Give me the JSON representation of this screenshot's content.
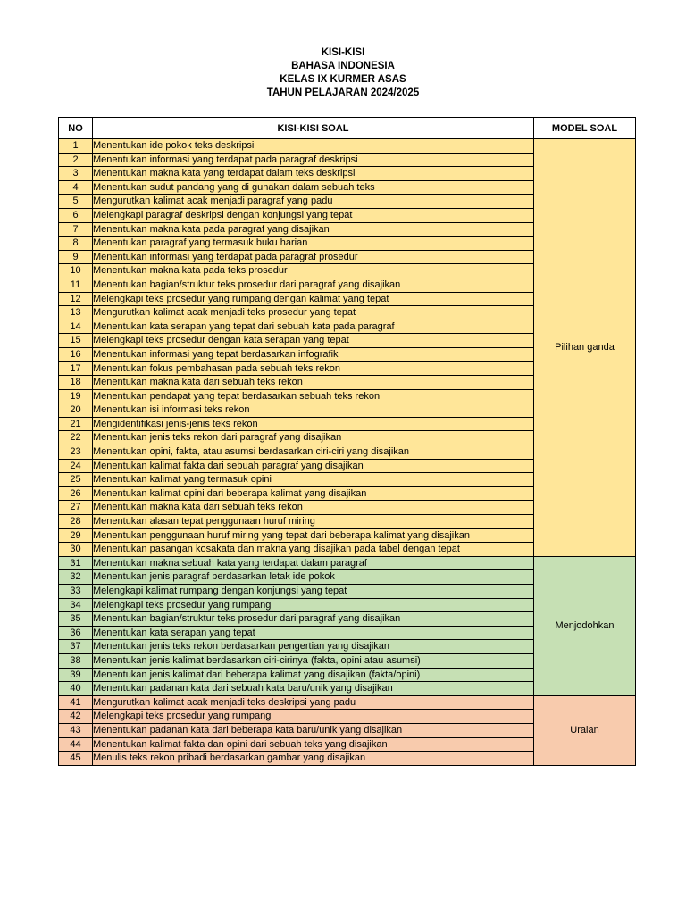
{
  "title": {
    "line1": "KISI-KISI",
    "line2": "BAHASA INDONESIA",
    "line3": "KELAS IX KURMER ASAS",
    "line4": "TAHUN PELAJARAN 2024/2025"
  },
  "table": {
    "headers": {
      "no": "NO",
      "kisi": "KISI-KISI SOAL",
      "model": "MODEL SOAL"
    },
    "groups": [
      {
        "model": "Pilihan ganda",
        "color": "#FFE699",
        "rows": [
          {
            "no": "1",
            "text": "Menentukan ide pokok teks deskripsi"
          },
          {
            "no": "2",
            "text": "Menentukan informasi yang terdapat pada paragraf deskripsi"
          },
          {
            "no": "3",
            "text": "Menentukan makna kata yang terdapat dalam teks deskripsi"
          },
          {
            "no": "4",
            "text": "Menentukan sudut pandang yang di gunakan dalam sebuah teks"
          },
          {
            "no": "5",
            "text": "Mengurutkan kalimat acak menjadi paragraf yang padu"
          },
          {
            "no": "6",
            "text": "Melengkapi paragraf deskripsi dengan konjungsi yang tepat"
          },
          {
            "no": "7",
            "text": "Menentukan makna kata pada paragraf yang disajikan"
          },
          {
            "no": "8",
            "text": "Menentukan paragraf yang termasuk buku harian"
          },
          {
            "no": "9",
            "text": "Menentukan informasi yang terdapat pada paragraf prosedur"
          },
          {
            "no": "10",
            "text": "Menentukan makna kata pada teks prosedur"
          },
          {
            "no": "11",
            "text": "Menentukan bagian/struktur teks prosedur dari paragraf yang disajikan"
          },
          {
            "no": "12",
            "text": "Melengkapi teks prosedur yang rumpang dengan kalimat yang tepat"
          },
          {
            "no": "13",
            "text": "Mengurutkan kalimat acak menjadi teks prosedur yang tepat"
          },
          {
            "no": "14",
            "text": "Menentukan kata serapan yang tepat dari sebuah kata pada paragraf"
          },
          {
            "no": "15",
            "text": "Melengkapi teks prosedur dengan kata serapan yang tepat"
          },
          {
            "no": "16",
            "text": "Menentukan informasi yang tepat berdasarkan infografik"
          },
          {
            "no": "17",
            "text": "Menentukan fokus pembahasan pada sebuah teks rekon"
          },
          {
            "no": "18",
            "text": "Menentukan makna kata dari sebuah teks rekon"
          },
          {
            "no": "19",
            "text": "Menentukan pendapat yang tepat berdasarkan sebuah teks rekon"
          },
          {
            "no": "20",
            "text": "Menentukan isi informasi teks rekon"
          },
          {
            "no": "21",
            "text": "Mengidentifikasi jenis-jenis teks rekon"
          },
          {
            "no": "22",
            "text": "Menentukan jenis teks rekon dari paragraf yang disajikan"
          },
          {
            "no": "23",
            "text": "Menentukan opini, fakta, atau asumsi berdasarkan ciri-ciri yang disajikan"
          },
          {
            "no": "24",
            "text": "Menentukan kalimat fakta dari sebuah paragraf yang disajikan"
          },
          {
            "no": "25",
            "text": "Menentukan kalimat yang termasuk opini"
          },
          {
            "no": "26",
            "text": "Menentukan kalimat opini dari beberapa kalimat yang disajikan"
          },
          {
            "no": "27",
            "text": "Menentukan makna kata dari sebuah teks rekon"
          },
          {
            "no": "28",
            "text": "Menentukan alasan tepat penggunaan huruf miring"
          },
          {
            "no": "29",
            "text": "Menentukan penggunaan huruf miring yang tepat dari beberapa kalimat yang disajikan"
          },
          {
            "no": "30",
            "text": "Menentukan pasangan kosakata dan makna yang disajikan pada tabel dengan tepat"
          }
        ]
      },
      {
        "model": "Menjodohkan",
        "color": "#C6E0B4",
        "rows": [
          {
            "no": "31",
            "text": "Menentukan makna sebuah kata yang terdapat dalam paragraf"
          },
          {
            "no": "32",
            "text": "Menentukan jenis paragraf berdasarkan letak ide pokok"
          },
          {
            "no": "33",
            "text": "Melengkapi kalimat rumpang dengan konjungsi yang tepat"
          },
          {
            "no": "34",
            "text": "Melengkapi teks prosedur yang rumpang"
          },
          {
            "no": "35",
            "text": "Menentukan bagian/struktur teks prosedur dari paragraf yang disajikan"
          },
          {
            "no": "36",
            "text": "Menentukan kata serapan yang tepat"
          },
          {
            "no": "37",
            "text": "Menentukan jenis teks rekon berdasarkan pengertian yang disajikan"
          },
          {
            "no": "38",
            "text": "Menentukan jenis kalimat berdasarkan ciri-cirinya (fakta, opini atau asumsi)"
          },
          {
            "no": "39",
            "text": "Menentukan jenis kalimat dari beberapa kalimat yang disajikan (fakta/opini)"
          },
          {
            "no": "40",
            "text": "Menentukan padanan kata dari sebuah kata baru/unik yang disajikan"
          }
        ]
      },
      {
        "model": "Uraian",
        "color": "#F8CBAD",
        "rows": [
          {
            "no": "41",
            "text": "Mengurutkan kalimat acak menjadi teks deskripsi yang padu"
          },
          {
            "no": "42",
            "text": "Melengkapi teks prosedur yang rumpang"
          },
          {
            "no": "43",
            "text": "Menentukan padanan kata dari beberapa kata baru/unik yang disajikan"
          },
          {
            "no": "44",
            "text": "Menentukan kalimat fakta dan opini dari sebuah teks yang disajikan"
          },
          {
            "no": "45",
            "text": "Menulis teks rekon pribadi berdasarkan gambar yang disajikan"
          }
        ]
      }
    ]
  }
}
